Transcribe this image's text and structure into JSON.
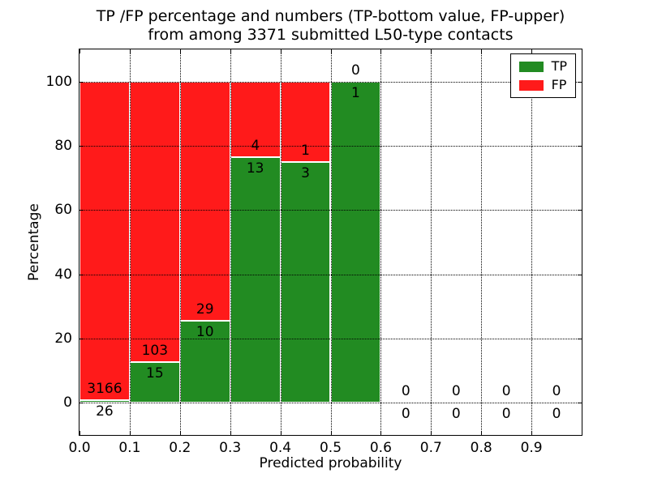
{
  "title": {
    "line1": "TP /FP percentage and numbers (TP-bottom value, FP-upper)",
    "line2": "from among 3371 submitted L50-type contacts"
  },
  "chart_data": {
    "type": "bar",
    "stacked": true,
    "title": "TP /FP percentage and numbers (TP-bottom value, FP-upper) from among 3371 submitted L50-type contacts",
    "xlabel": "Predicted probability",
    "ylabel": "Percentage",
    "xlim": [
      0.0,
      1.0
    ],
    "ylim": [
      -10,
      110
    ],
    "x_ticks": [
      "0.0",
      "0.1",
      "0.2",
      "0.3",
      "0.4",
      "0.5",
      "0.6",
      "0.7",
      "0.8",
      "0.9"
    ],
    "y_ticks": [
      "0",
      "20",
      "40",
      "60",
      "80",
      "100"
    ],
    "grid": true,
    "grid_style": "dotted",
    "total_contacts": 3371,
    "bin_edges": [
      0.0,
      0.1,
      0.2,
      0.3,
      0.4,
      0.5,
      0.6,
      0.7,
      0.8,
      0.9,
      1.0
    ],
    "series": [
      {
        "name": "TP",
        "color": "#228b22",
        "counts": [
          26,
          15,
          10,
          13,
          3,
          1,
          0,
          0,
          0,
          0
        ],
        "percent": [
          0.81,
          12.71,
          25.64,
          76.47,
          75.0,
          100.0,
          0,
          0,
          0,
          0
        ]
      },
      {
        "name": "FP",
        "color": "#ff1a1a",
        "counts": [
          3166,
          103,
          29,
          4,
          1,
          0,
          0,
          0,
          0,
          0
        ],
        "percent": [
          99.19,
          87.29,
          74.36,
          23.53,
          25.0,
          0,
          0,
          0,
          0,
          0
        ]
      }
    ],
    "legend": {
      "position": "upper right",
      "entries": [
        {
          "label": "TP",
          "color": "#228b22"
        },
        {
          "label": "FP",
          "color": "#ff1a1a"
        }
      ]
    },
    "annotation_note": "TP count below green top edge, FP count above it; empty bins annotated 0/0"
  },
  "colors": {
    "tp": "#228b22",
    "fp": "#ff1a1a",
    "background": "#ffffff",
    "axis": "#000000"
  }
}
